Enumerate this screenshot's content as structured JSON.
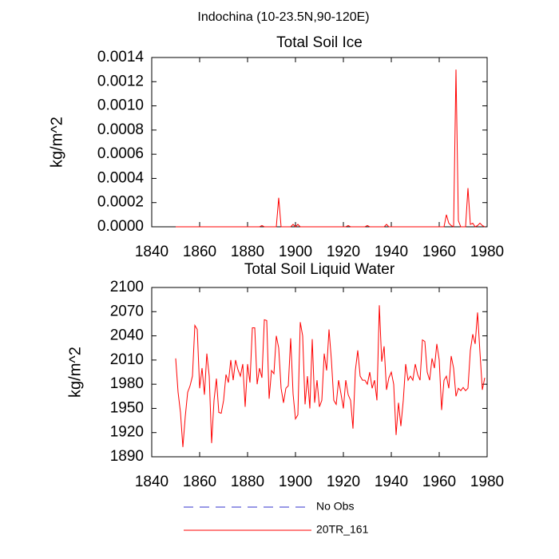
{
  "title": "Indochina (10-23.5N,90-120E)",
  "legend": [
    {
      "name": "No Obs",
      "color": "#3333cc",
      "dash": true
    },
    {
      "name": "20TR_161",
      "color": "#ff0000",
      "dash": false
    }
  ],
  "chart_data": [
    {
      "type": "line",
      "title": "Total Soil Ice",
      "ylabel": "kg/m^2",
      "x": [
        1850,
        1851,
        1852,
        1853,
        1854,
        1855,
        1856,
        1857,
        1858,
        1859,
        1860,
        1861,
        1862,
        1863,
        1864,
        1865,
        1866,
        1867,
        1868,
        1869,
        1870,
        1871,
        1872,
        1873,
        1874,
        1875,
        1876,
        1877,
        1878,
        1879,
        1880,
        1881,
        1882,
        1883,
        1884,
        1885,
        1886,
        1887,
        1888,
        1889,
        1890,
        1891,
        1892,
        1893,
        1894,
        1895,
        1896,
        1897,
        1898,
        1899,
        1900,
        1901,
        1902,
        1903,
        1904,
        1905,
        1906,
        1907,
        1908,
        1909,
        1910,
        1911,
        1912,
        1913,
        1914,
        1915,
        1916,
        1917,
        1918,
        1919,
        1920,
        1921,
        1922,
        1923,
        1924,
        1925,
        1926,
        1927,
        1928,
        1929,
        1930,
        1931,
        1932,
        1933,
        1934,
        1935,
        1936,
        1937,
        1938,
        1939,
        1940,
        1941,
        1942,
        1943,
        1944,
        1945,
        1946,
        1947,
        1948,
        1949,
        1950,
        1951,
        1952,
        1953,
        1954,
        1955,
        1956,
        1957,
        1958,
        1959,
        1960,
        1961,
        1962,
        1963,
        1964,
        1965,
        1966,
        1967,
        1968,
        1969,
        1970,
        1971,
        1972,
        1973,
        1974,
        1975,
        1976,
        1977,
        1978,
        1979
      ],
      "xlim": [
        1840,
        1980
      ],
      "xticks": [
        1840,
        1860,
        1880,
        1900,
        1920,
        1940,
        1960,
        1980
      ],
      "ylim": [
        0,
        0.0014
      ],
      "yticks": [
        {
          "value": 0,
          "label": "0.0000"
        },
        0.0002,
        0.0004,
        0.0006,
        0.0008,
        {
          "value": 0.001,
          "label": "0.0010"
        },
        0.0012,
        0.0014
      ],
      "series": [
        {
          "color": "#ff0000",
          "values": [
            0,
            0,
            0,
            0,
            0,
            0,
            0,
            0,
            0,
            0,
            0,
            0,
            0,
            0,
            0,
            0,
            0,
            0,
            0,
            0,
            0,
            0,
            0,
            0,
            0,
            0,
            0,
            0,
            0,
            0,
            0,
            0,
            0,
            0,
            0,
            0,
            1e-05,
            0,
            0,
            0,
            0,
            0,
            0,
            0.00024,
            0,
            0,
            0,
            0,
            0,
            2e-05,
            0,
            2e-05,
            0,
            0,
            0,
            0,
            0,
            0,
            0,
            0,
            0,
            0,
            0,
            0,
            0,
            0,
            0,
            0,
            0,
            0,
            0,
            0,
            1e-05,
            0,
            0,
            0,
            0,
            0,
            0,
            0,
            1e-05,
            0,
            0,
            0,
            0,
            0,
            0,
            0,
            2e-05,
            0,
            0,
            0,
            0,
            0,
            0,
            0,
            0,
            0,
            0,
            0,
            0,
            0,
            0,
            0,
            0,
            0,
            0,
            0,
            0,
            0,
            0,
            0,
            0,
            0.0001,
            3e-05,
            1e-05,
            0,
            0.0013,
            5e-05,
            0,
            0,
            0,
            0.00032,
            2e-05,
            3e-05,
            0,
            1e-05,
            3e-05,
            1e-05,
            0
          ]
        }
      ]
    },
    {
      "type": "line",
      "title": "Total Soil Liquid Water",
      "ylabel": "kg/m^2",
      "x": [
        1850,
        1851,
        1852,
        1853,
        1854,
        1855,
        1856,
        1857,
        1858,
        1859,
        1860,
        1861,
        1862,
        1863,
        1864,
        1865,
        1866,
        1867,
        1868,
        1869,
        1870,
        1871,
        1872,
        1873,
        1874,
        1875,
        1876,
        1877,
        1878,
        1879,
        1880,
        1881,
        1882,
        1883,
        1884,
        1885,
        1886,
        1887,
        1888,
        1889,
        1890,
        1891,
        1892,
        1893,
        1894,
        1895,
        1896,
        1897,
        1898,
        1899,
        1900,
        1901,
        1902,
        1903,
        1904,
        1905,
        1906,
        1907,
        1908,
        1909,
        1910,
        1911,
        1912,
        1913,
        1914,
        1915,
        1916,
        1917,
        1918,
        1919,
        1920,
        1921,
        1922,
        1923,
        1924,
        1925,
        1926,
        1927,
        1928,
        1929,
        1930,
        1931,
        1932,
        1933,
        1934,
        1935,
        1936,
        1937,
        1938,
        1939,
        1940,
        1941,
        1942,
        1943,
        1944,
        1945,
        1946,
        1947,
        1948,
        1949,
        1950,
        1951,
        1952,
        1953,
        1954,
        1955,
        1956,
        1957,
        1958,
        1959,
        1960,
        1961,
        1962,
        1963,
        1964,
        1965,
        1966,
        1967,
        1968,
        1969,
        1970,
        1971,
        1972,
        1973,
        1974,
        1975,
        1976,
        1977,
        1978,
        1979
      ],
      "xlim": [
        1840,
        1980
      ],
      "xticks": [
        1840,
        1860,
        1880,
        1900,
        1920,
        1940,
        1960,
        1980
      ],
      "ylim": [
        1890,
        2100
      ],
      "yticks": [
        1890,
        1920,
        1950,
        1980,
        2010,
        2040,
        2070,
        2100
      ],
      "series": [
        {
          "color": "#ff0000",
          "values": [
            2012,
            1970,
            1945,
            1902,
            1940,
            1970,
            1978,
            1990,
            2053,
            2048,
            1975,
            2000,
            1967,
            2018,
            1990,
            1907,
            1960,
            1987,
            1945,
            1944,
            1960,
            1992,
            1982,
            2010,
            1985,
            2010,
            1998,
            1990,
            2005,
            1952,
            2005,
            1982,
            2050,
            2050,
            1980,
            2000,
            1988,
            2060,
            2059,
            1962,
            1997,
            1993,
            2040,
            2025,
            1975,
            1957,
            1975,
            1978,
            2037,
            1968,
            1937,
            1942,
            2057,
            2040,
            1955,
            1990,
            1950,
            2036,
            1957,
            1985,
            1952,
            1960,
            2018,
            1997,
            2048,
            2010,
            1960,
            1955,
            1985,
            1968,
            1950,
            1985,
            1967,
            1960,
            1925,
            1997,
            2022,
            1990,
            1985,
            1985,
            1980,
            1995,
            1975,
            1985,
            1960,
            2078,
            2008,
            2027,
            1973,
            1988,
            1995,
            1980,
            1917,
            1957,
            1928,
            1960,
            2005,
            1985,
            1990,
            1985,
            2005,
            1992,
            1985,
            2035,
            2033,
            1995,
            1985,
            2012,
            2000,
            2030,
            2010,
            1948,
            1985,
            1990,
            1975,
            2015,
            2000,
            1965,
            1975,
            1972,
            1976,
            1972,
            1975,
            2022,
            2042,
            2030,
            2069,
            2020,
            1973,
            1988
          ]
        }
      ]
    }
  ]
}
